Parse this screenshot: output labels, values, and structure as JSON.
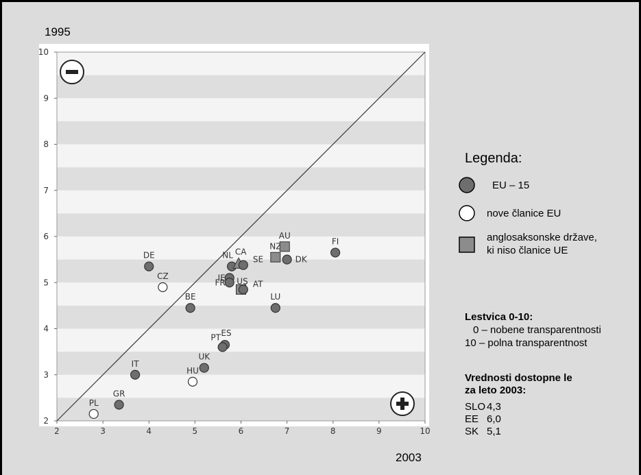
{
  "corner_labels": {
    "y_year": "1995",
    "x_year": "2003"
  },
  "legend": {
    "title": "Legenda:",
    "items": [
      {
        "label": "EU – 15",
        "shape": "circle",
        "fill": "#6e6e6e"
      },
      {
        "label": "nove članice EU",
        "shape": "circle",
        "fill": "#ffffff"
      },
      {
        "label_line1": "anglosaksonske države,",
        "label_line2": "ki niso članice UE",
        "shape": "square",
        "fill": "#8c8c8c"
      }
    ]
  },
  "scale": {
    "title": "Lestvica 0-10:",
    "line1": "0 – nobene transparentnosti",
    "line2": "10 – polna transparentnost"
  },
  "only2003": {
    "title_line1": "Vrednosti dostopne le",
    "title_line2": "za leto 2003:",
    "rows": [
      {
        "code": "SLO",
        "value": "4,3"
      },
      {
        "code": "EE",
        "value": "6,0"
      },
      {
        "code": "SK",
        "value": "5,1"
      }
    ]
  },
  "colors": {
    "eu15": "#6e6e6e",
    "new": "#ffffff",
    "anglo": "#8c8c8c",
    "band_light": "#f4f4f4",
    "band_dark": "#dedede"
  },
  "icons": {
    "minus": "minus-circle-icon",
    "plus": "plus-circle-icon"
  },
  "chart_data": {
    "type": "scatter",
    "xlabel": "2003",
    "ylabel": "1995",
    "xlim": [
      2,
      10
    ],
    "ylim": [
      2,
      10
    ],
    "xticks": [
      2,
      3,
      4,
      5,
      6,
      7,
      8,
      9,
      10
    ],
    "yticks": [
      2,
      3,
      4,
      5,
      6,
      7,
      8,
      9,
      10
    ],
    "diagonal": true,
    "points": [
      {
        "label": "DE",
        "x": 4.0,
        "y": 5.35,
        "group": "eu15"
      },
      {
        "label": "CZ",
        "x": 4.3,
        "y": 4.9,
        "group": "new"
      },
      {
        "label": "BE",
        "x": 4.9,
        "y": 4.45,
        "group": "eu15"
      },
      {
        "label": "NL",
        "x": 5.8,
        "y": 5.35,
        "group": "eu15"
      },
      {
        "label": "CA",
        "x": 5.95,
        "y": 5.4,
        "group": "anglo_tri"
      },
      {
        "label": "SE",
        "x": 6.05,
        "y": 5.38,
        "group": "eu15"
      },
      {
        "label": "IE",
        "x": 5.75,
        "y": 5.1,
        "group": "eu15"
      },
      {
        "label": "US",
        "x": 6.0,
        "y": 4.85,
        "group": "anglo"
      },
      {
        "label": "FR",
        "x": 5.75,
        "y": 5.0,
        "group": "eu15"
      },
      {
        "label": "AT",
        "x": 6.05,
        "y": 4.85,
        "group": "eu15"
      },
      {
        "label": "NZ",
        "x": 6.75,
        "y": 5.55,
        "group": "anglo"
      },
      {
        "label": "AU",
        "x": 6.95,
        "y": 5.78,
        "group": "anglo"
      },
      {
        "label": "DK",
        "x": 7.0,
        "y": 5.5,
        "group": "eu15"
      },
      {
        "label": "FI",
        "x": 8.05,
        "y": 5.65,
        "group": "eu15"
      },
      {
        "label": "LU",
        "x": 6.75,
        "y": 4.45,
        "group": "eu15"
      },
      {
        "label": "ES",
        "x": 5.65,
        "y": 3.65,
        "group": "eu15"
      },
      {
        "label": "PT",
        "x": 5.6,
        "y": 3.6,
        "group": "eu15"
      },
      {
        "label": "UK",
        "x": 5.2,
        "y": 3.15,
        "group": "eu15"
      },
      {
        "label": "HU",
        "x": 4.95,
        "y": 2.85,
        "group": "new"
      },
      {
        "label": "IT",
        "x": 3.7,
        "y": 3.0,
        "group": "eu15"
      },
      {
        "label": "GR",
        "x": 3.35,
        "y": 2.35,
        "group": "eu15"
      },
      {
        "label": "PL",
        "x": 2.8,
        "y": 2.15,
        "group": "new"
      }
    ]
  }
}
